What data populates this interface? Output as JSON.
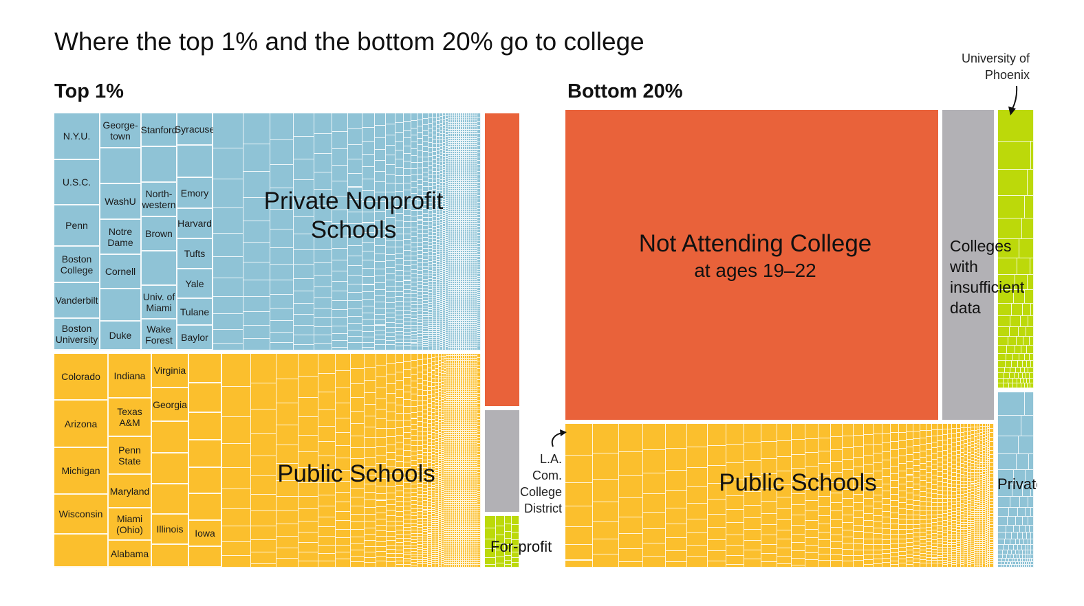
{
  "title": "Where the top 1% and the bottom 20% go to college",
  "colors": {
    "private": "#8fc3d6",
    "public": "#fbbf2d",
    "not_attending": "#e9623a",
    "insufficient": "#b2b1b5",
    "for_profit": "#bcd90a"
  },
  "chart_data": [
    {
      "type": "treemap",
      "title": "Top 1%",
      "categories": [
        {
          "key": "private",
          "name": "Private Nonprofit Schools",
          "share_estimate_pct": 48.4,
          "schools": [
            "N.Y.U.",
            "U.S.C.",
            "Penn",
            "Boston\nCollege",
            "Vanderbilt",
            "Boston\nUniversity",
            "George-\ntown",
            "WashU",
            "Notre\nDame",
            "Cornell",
            "Duke",
            "Stanford",
            "North-\nwestern",
            "Brown",
            "Univ. of\nMiami",
            "Wake\nForest",
            "Syracuse",
            "Emory",
            "Harvard",
            "Tufts",
            "Yale",
            "Tulane",
            "Baylor"
          ]
        },
        {
          "key": "public",
          "name": "Public Schools",
          "share_estimate_pct": 44.3,
          "schools": [
            "Colorado",
            "Arizona",
            "Michigan",
            "Wisconsin",
            "Indiana",
            "Texas\nA&M",
            "Penn\nState",
            "Maryland",
            "Miami\n(Ohio)",
            "Alabama",
            "Virginia",
            "Georgia",
            "Illinois",
            "Iowa"
          ]
        },
        {
          "key": "not_attending",
          "share_estimate_pct": 4.8
        },
        {
          "key": "insufficient",
          "share_estimate_pct": 1.7
        },
        {
          "key": "for_profit",
          "name": "For-profit",
          "share_estimate_pct": 0.8
        }
      ]
    },
    {
      "type": "treemap",
      "title": "Bottom 20%",
      "categories": [
        {
          "key": "not_attending",
          "name": "Not Attending College",
          "subname": "at ages 19–22",
          "share_estimate_pct": 54
        },
        {
          "key": "insufficient",
          "name": "Colleges\nwith\ninsufficient\ndata",
          "share_estimate_pct": 7.5
        },
        {
          "key": "for_profit",
          "share_estimate_pct": 4.7
        },
        {
          "key": "public",
          "name": "Public Schools",
          "share_estimate_pct": 29
        },
        {
          "key": "private",
          "name": "Private",
          "share_estimate_pct": 2.9
        }
      ],
      "annotations": [
        "L.A.\nCom.\nCollege\nDistrict",
        "University of\nPhoenix"
      ]
    }
  ]
}
